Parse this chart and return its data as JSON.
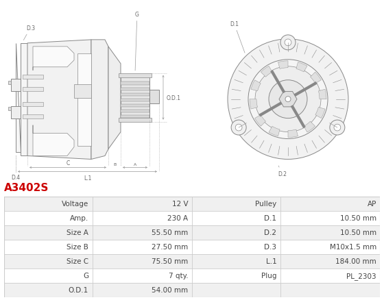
{
  "title": "A3402S",
  "title_color": "#cc0000",
  "background_color": "#ffffff",
  "table_data": [
    [
      "Voltage",
      "12 V",
      "Pulley",
      "AP"
    ],
    [
      "Amp.",
      "230 A",
      "D.1",
      "10.50 mm"
    ],
    [
      "Size A",
      "55.50 mm",
      "D.2",
      "10.50 mm"
    ],
    [
      "Size B",
      "27.50 mm",
      "D.3",
      "M10x1.5 mm"
    ],
    [
      "Size C",
      "75.50 mm",
      "L.1",
      "184.00 mm"
    ],
    [
      "G",
      "7 qty.",
      "Plug",
      "PL_2303"
    ],
    [
      "O.D.1",
      "54.00 mm",
      "",
      ""
    ]
  ],
  "border_color": "#cccccc",
  "row_bg_odd": "#f0f0f0",
  "row_bg_even": "#ffffff",
  "text_color": "#444444",
  "line_color": "#888888",
  "dim_color": "#999999"
}
